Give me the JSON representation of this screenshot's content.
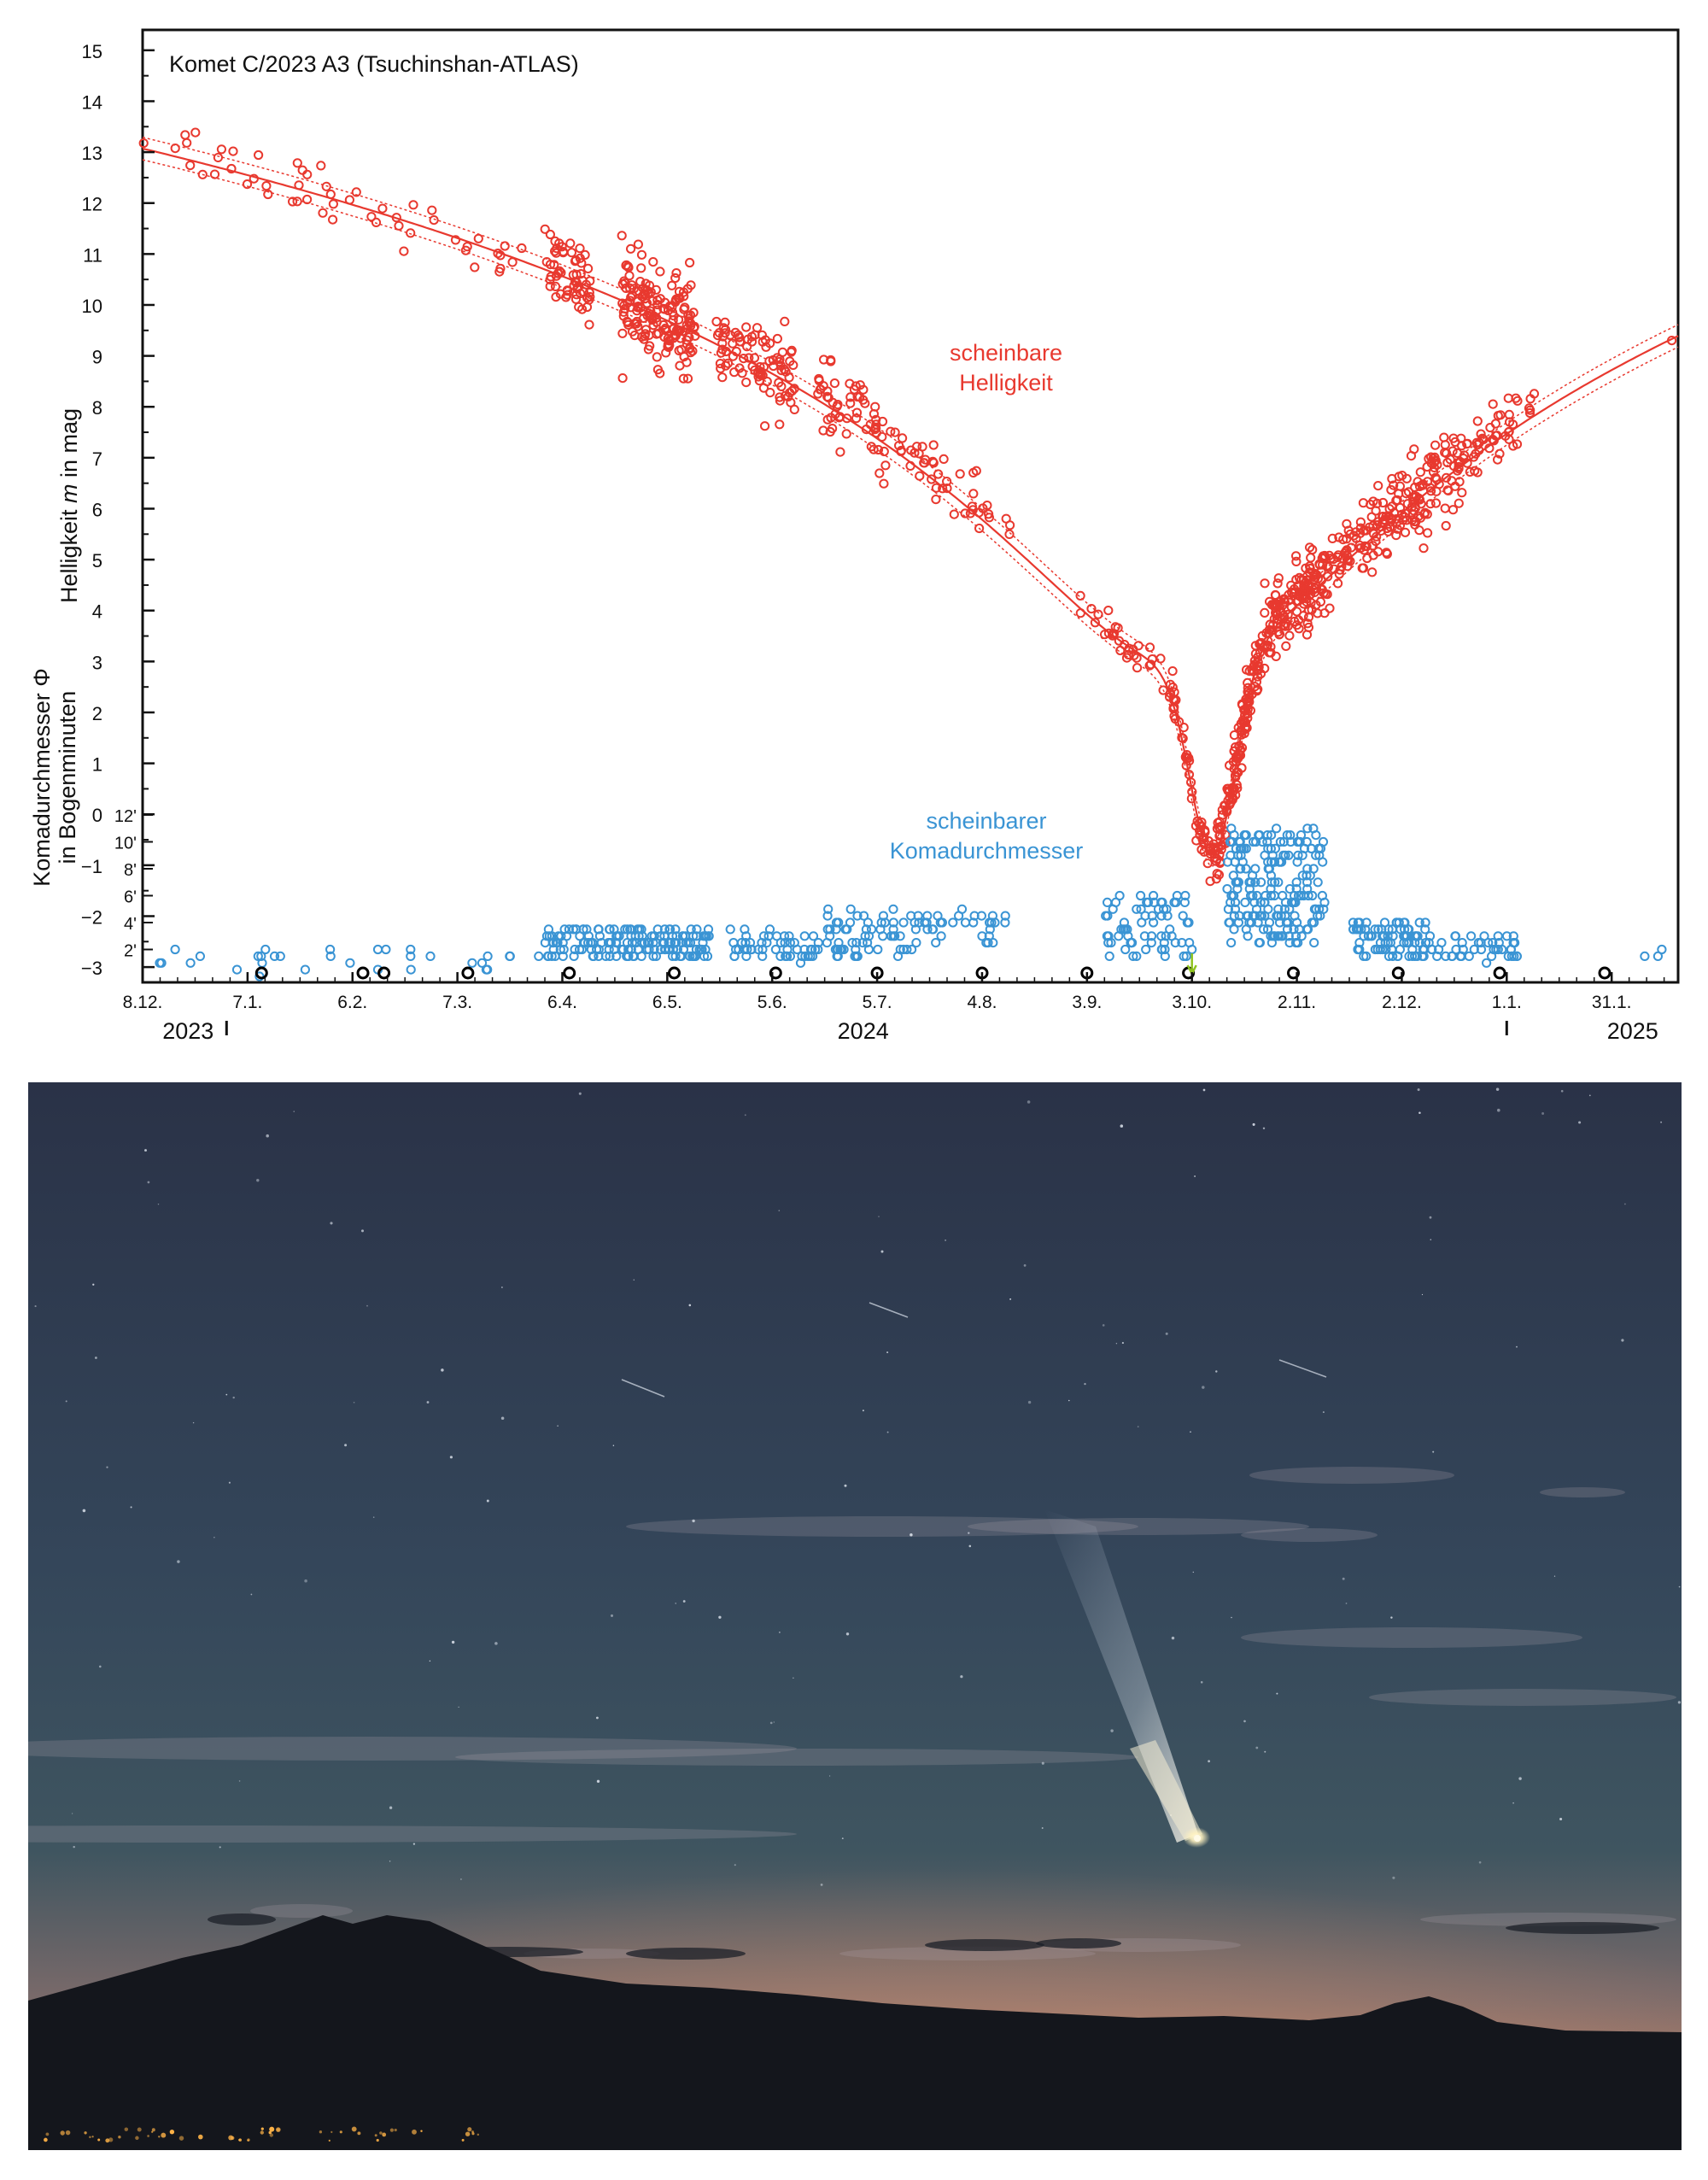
{
  "chart_data": {
    "type": "scatter",
    "title": "Komet C/2023 A3 (Tsuchinshan-ATLAS)",
    "x_axis": {
      "range": [
        "2023-12-08",
        "2025-02-19"
      ],
      "ticks": [
        {
          "date": "2023-12-08",
          "label": "8.12."
        },
        {
          "date": "2024-01-07",
          "label": "7.1."
        },
        {
          "date": "2024-02-06",
          "label": "6.2."
        },
        {
          "date": "2024-03-07",
          "label": "7.3."
        },
        {
          "date": "2024-04-06",
          "label": "6.4."
        },
        {
          "date": "2024-05-06",
          "label": "6.5."
        },
        {
          "date": "2024-06-05",
          "label": "5.6."
        },
        {
          "date": "2024-07-05",
          "label": "5.7."
        },
        {
          "date": "2024-08-04",
          "label": "4.8."
        },
        {
          "date": "2024-09-03",
          "label": "3.9."
        },
        {
          "date": "2024-10-03",
          "label": "3.10."
        },
        {
          "date": "2024-11-02",
          "label": "2.11."
        },
        {
          "date": "2024-12-02",
          "label": "2.12."
        },
        {
          "date": "2025-01-01",
          "label": "1.1."
        },
        {
          "date": "2025-01-31",
          "label": "31.1."
        }
      ],
      "year_labels": [
        {
          "date": "2023-12-21",
          "label": "2023"
        },
        {
          "date": "2024-07-01",
          "label": "2024"
        },
        {
          "date": "2025-02-06",
          "label": "2025"
        }
      ],
      "year_boundaries": [
        "2024-01-01",
        "2025-01-01"
      ]
    },
    "magnitude_axis": {
      "label_pre": "Helligkeit ",
      "label_var": "m",
      "label_post": " in mag",
      "range": [
        15.4,
        -3.3
      ],
      "ticks": [
        "−3",
        "−2",
        "−1",
        "0",
        "1",
        "2",
        "3",
        "4",
        "5",
        "6",
        "7",
        "8",
        "9",
        "10",
        "11",
        "12",
        "13",
        "14",
        "15"
      ],
      "inverted": true
    },
    "coma_axis": {
      "label_line1": "Komadurchmesser Φ",
      "label_line2": "in Bogenminuten",
      "range": [
        0,
        12
      ],
      "ticks": [
        "2'",
        "4'",
        "6'",
        "8'",
        "10'",
        "12'"
      ]
    },
    "series": [
      {
        "name": "scheinbare Helligkeit",
        "label_line1": "scheinbare",
        "label_line2": "Helligkeit",
        "color": "#e8392f",
        "fit_curve": true,
        "clusters": [
          {
            "start": "2023-12-08",
            "end": "2024-01-31",
            "mag_offset": 0.2,
            "spread": 0.3,
            "count": 28
          },
          {
            "start": "2024-01-31",
            "end": "2024-03-31",
            "mag_offset": 0.0,
            "spread": 0.25,
            "count": 26
          },
          {
            "start": "2024-04-01",
            "end": "2024-04-14",
            "mag_offset": 0.05,
            "spread": 0.35,
            "count": 60
          },
          {
            "start": "2024-04-23",
            "end": "2024-05-14",
            "mag_offset": 0.05,
            "spread": 0.45,
            "count": 170
          },
          {
            "start": "2024-05-20",
            "end": "2024-06-12",
            "mag_offset": 0.05,
            "spread": 0.4,
            "count": 90
          },
          {
            "start": "2024-06-18",
            "end": "2024-07-08",
            "mag_offset": 0.1,
            "spread": 0.35,
            "count": 60
          },
          {
            "start": "2024-07-08",
            "end": "2024-08-12",
            "mag_offset": 0.2,
            "spread": 0.3,
            "count": 45
          },
          {
            "start": "2024-09-01",
            "end": "2024-09-26",
            "mag_offset": 0.0,
            "spread": 0.2,
            "count": 30
          },
          {
            "start": "2024-09-26",
            "end": "2024-10-10",
            "mag_offset": 0.0,
            "spread": 0.2,
            "count": 60
          },
          {
            "start": "2024-10-10",
            "end": "2024-10-20",
            "mag_offset": 0.0,
            "spread": 0.3,
            "count": 110
          },
          {
            "start": "2024-10-20",
            "end": "2024-11-10",
            "mag_offset": 0.1,
            "spread": 0.35,
            "count": 170
          },
          {
            "start": "2024-11-10",
            "end": "2024-12-20",
            "mag_offset": 0.1,
            "spread": 0.4,
            "count": 200
          },
          {
            "start": "2024-12-20",
            "end": "2025-01-10",
            "mag_offset": 0.1,
            "spread": 0.3,
            "count": 45
          },
          {
            "start": "2025-02-17",
            "end": "2025-02-18",
            "mag_offset": 0.0,
            "spread": 0.05,
            "count": 1
          }
        ]
      },
      {
        "name": "scheinbarer Komadurchmesser",
        "label_line1": "scheinbarer",
        "label_line2": "Komadurchmesser",
        "color": "#3a94d4",
        "clusters": [
          {
            "start": "2023-12-08",
            "end": "2024-03-31",
            "coma_min": 0.2,
            "coma_max": 2.2,
            "count": 32
          },
          {
            "start": "2024-04-01",
            "end": "2024-04-20",
            "coma_min": 1.3,
            "coma_max": 3.7,
            "count": 60
          },
          {
            "start": "2024-04-20",
            "end": "2024-05-18",
            "coma_min": 1.3,
            "coma_max": 3.5,
            "count": 110
          },
          {
            "start": "2024-05-24",
            "end": "2024-06-18",
            "coma_min": 1.2,
            "coma_max": 3.4,
            "count": 50
          },
          {
            "start": "2024-06-18",
            "end": "2024-07-15",
            "coma_min": 1.5,
            "coma_max": 5.0,
            "count": 60
          },
          {
            "start": "2024-07-15",
            "end": "2024-08-12",
            "coma_min": 2.5,
            "coma_max": 4.8,
            "count": 35
          },
          {
            "start": "2024-09-08",
            "end": "2024-10-03",
            "coma_min": 1.6,
            "coma_max": 6.0,
            "count": 70
          },
          {
            "start": "2024-10-13",
            "end": "2024-11-10",
            "coma_min": 2.5,
            "coma_max": 11.0,
            "count": 210
          },
          {
            "start": "2024-11-18",
            "end": "2024-12-10",
            "coma_min": 1.5,
            "coma_max": 4.0,
            "count": 85
          },
          {
            "start": "2024-12-10",
            "end": "2025-01-04",
            "coma_min": 1.2,
            "coma_max": 3.2,
            "count": 45
          },
          {
            "start": "2025-02-08",
            "end": "2025-02-20",
            "coma_min": 1.0,
            "coma_max": 2.5,
            "count": 3
          }
        ]
      },
      {
        "name": "new moon markers",
        "color": "#000000",
        "dates": [
          "2024-01-11",
          "2024-02-09",
          "2024-02-15",
          "2024-03-10",
          "2024-04-08",
          "2024-05-08",
          "2024-06-06",
          "2024-07-05",
          "2024-08-04",
          "2024-09-03",
          "2024-10-02",
          "2024-11-01",
          "2024-12-01",
          "2024-12-30",
          "2025-01-29"
        ]
      }
    ],
    "annotations": [
      {
        "date": "2024-10-03",
        "symbol": "down-arrow",
        "color": "#8fc31f"
      }
    ]
  },
  "photo": {
    "sky_color_top": "#2a3247",
    "sky_color_mid": "#3a4f5d",
    "horizon_glow": "#c98467",
    "mountain_color": "#14161c",
    "comet_head_color": "#fff2c0",
    "city_lights_color": "#ffb347"
  }
}
